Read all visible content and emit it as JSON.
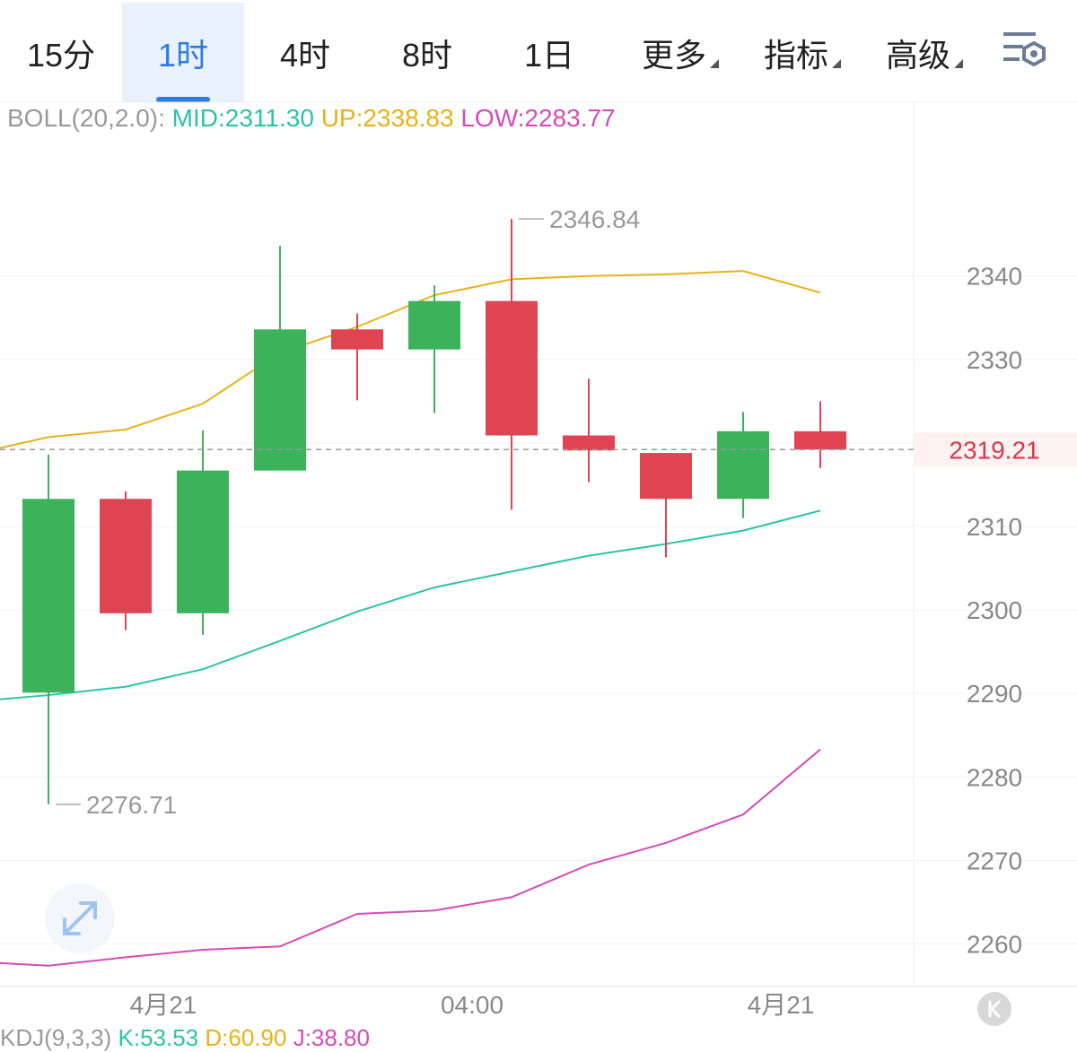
{
  "tabs": [
    {
      "label": "15分",
      "active": false,
      "dropdown": false
    },
    {
      "label": "1时",
      "active": true,
      "dropdown": false
    },
    {
      "label": "4时",
      "active": false,
      "dropdown": false
    },
    {
      "label": "8时",
      "active": false,
      "dropdown": false
    },
    {
      "label": "1日",
      "active": false,
      "dropdown": false
    },
    {
      "label": "更多",
      "active": false,
      "dropdown": true
    },
    {
      "label": "指标",
      "active": false,
      "dropdown": true
    },
    {
      "label": "高级",
      "active": false,
      "dropdown": true
    }
  ],
  "boll": {
    "label": "BOLL(20,2.0):",
    "mid": "MID:2311.30",
    "up": "UP:2338.83",
    "low": "LOW:2283.77"
  },
  "kdj": {
    "label": "KDJ(9,3,3)",
    "k": "K:53.53",
    "d": "D:60.90",
    "j": "J:38.80"
  },
  "colors": {
    "up_candle": "#3cb35a",
    "down_candle": "#e04452",
    "mid_line": "#2cc3a8",
    "upper_band": "#e7b21a",
    "lower_band": "#d54bb8",
    "accent": "#2f7ce0"
  },
  "icons": {
    "settings": "settings-gear-icon",
    "expand": "expand-arrows-icon",
    "k": "k-logo-icon"
  },
  "chart_data": {
    "type": "candlestick",
    "ylim": [
      2255,
      2350
    ],
    "yticks": [
      2340,
      2330,
      2320,
      2310,
      2300,
      2290,
      2280,
      2270,
      2260
    ],
    "ytick_labels": [
      "2340",
      "2330",
      "",
      "2310",
      "2300",
      "2290",
      "2280",
      "2270",
      "2260"
    ],
    "xtick_labels": [
      {
        "index": 1.5,
        "label": "4月21"
      },
      {
        "index": 5.5,
        "label": "04:00"
      },
      {
        "index": 9.5,
        "label": "4月21"
      }
    ],
    "current_price": 2319.21,
    "current_price_label": "2319.21",
    "max_label": {
      "index": 6,
      "value": 2346.84,
      "label": "2346.84"
    },
    "min_label": {
      "index": 0,
      "value": 2276.71,
      "label": "2276.71"
    },
    "candles": [
      {
        "open": 2290.1,
        "high": 2318.6,
        "low": 2276.71,
        "close": 2313.3
      },
      {
        "open": 2313.3,
        "high": 2314.2,
        "low": 2297.6,
        "close": 2299.6
      },
      {
        "open": 2299.6,
        "high": 2321.5,
        "low": 2297.0,
        "close": 2316.7
      },
      {
        "open": 2316.7,
        "high": 2343.6,
        "low": 2316.7,
        "close": 2333.6
      },
      {
        "open": 2333.6,
        "high": 2335.5,
        "low": 2325.1,
        "close": 2331.2
      },
      {
        "open": 2331.2,
        "high": 2338.9,
        "low": 2323.6,
        "close": 2337.0
      },
      {
        "open": 2337.0,
        "high": 2346.84,
        "low": 2312.0,
        "close": 2320.9
      },
      {
        "open": 2320.9,
        "high": 2327.7,
        "low": 2315.3,
        "close": 2319.1
      },
      {
        "open": 2318.8,
        "high": 2318.8,
        "low": 2306.3,
        "close": 2313.3
      },
      {
        "open": 2313.3,
        "high": 2323.7,
        "low": 2311.0,
        "close": 2321.4
      },
      {
        "open": 2321.4,
        "high": 2325.0,
        "low": 2317.0,
        "close": 2319.21
      }
    ],
    "series": [
      {
        "name": "UP",
        "x": [
          -0.6,
          0,
          1,
          2,
          3,
          4,
          5,
          6,
          7,
          8,
          9,
          10
        ],
        "values": [
          2319.4,
          2320.7,
          2321.6,
          2324.7,
          2330.8,
          2333.9,
          2337.7,
          2339.6,
          2340.0,
          2340.2,
          2340.6,
          2338.0
        ]
      },
      {
        "name": "MID",
        "x": [
          -0.6,
          0,
          1,
          2,
          3,
          4,
          5,
          6,
          7,
          8,
          9,
          10
        ],
        "values": [
          2289.3,
          2289.8,
          2290.8,
          2292.9,
          2296.3,
          2299.8,
          2302.7,
          2304.6,
          2306.5,
          2307.9,
          2309.5,
          2311.9
        ]
      },
      {
        "name": "LOW",
        "x": [
          -0.6,
          0,
          1,
          2,
          3,
          4,
          5,
          6,
          7,
          8,
          9,
          10
        ],
        "values": [
          2257.7,
          2257.4,
          2258.4,
          2259.3,
          2259.7,
          2263.6,
          2264.0,
          2265.6,
          2269.5,
          2272.1,
          2275.5,
          2283.3
        ]
      }
    ]
  }
}
